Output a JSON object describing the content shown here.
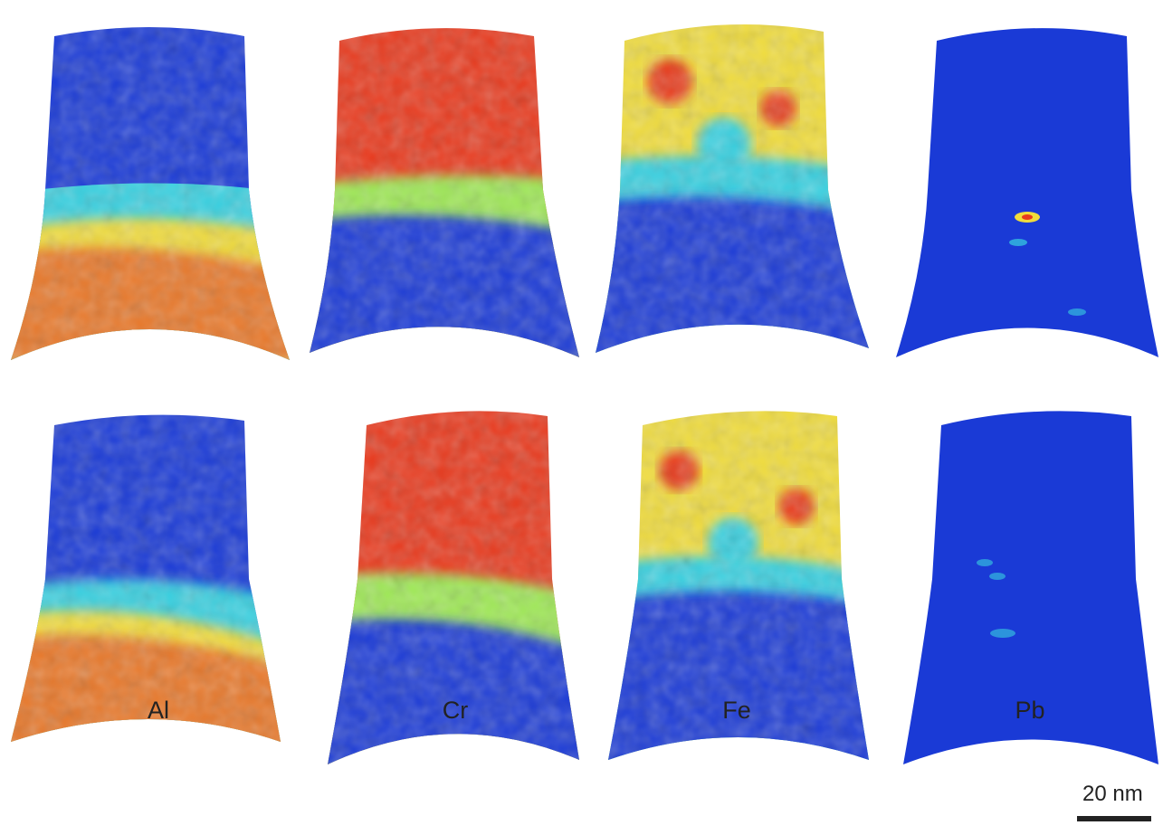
{
  "figure": {
    "labels": [
      "Al",
      "Cr",
      "Fe",
      "Pb"
    ],
    "scale_bar": "20 nm",
    "rows": [
      {
        "maps": [
          {
            "element": "Al",
            "zones": [
              "low",
              "transition",
              "high"
            ]
          },
          {
            "element": "Cr",
            "zones": [
              "high",
              "transition",
              "low"
            ]
          },
          {
            "element": "Fe",
            "zones": [
              "mid-high speckled",
              "transition",
              "low"
            ]
          },
          {
            "element": "Pb",
            "zones": [
              "low",
              "low",
              "low"
            ],
            "hotspots": 3
          }
        ]
      },
      {
        "maps": [
          {
            "element": "Al",
            "zones": [
              "low",
              "transition",
              "high"
            ]
          },
          {
            "element": "Cr",
            "zones": [
              "high",
              "transition",
              "low"
            ]
          },
          {
            "element": "Fe",
            "zones": [
              "mid-high speckled",
              "transition",
              "low"
            ]
          },
          {
            "element": "Pb",
            "zones": [
              "low",
              "low",
              "low"
            ],
            "hotspots": 3
          }
        ]
      }
    ],
    "colormap": {
      "low": "#1a3ad6",
      "cyan": "#38d0e0",
      "green": "#9ee855",
      "yellow": "#f0dc3c",
      "high": "#e83a1e"
    }
  }
}
